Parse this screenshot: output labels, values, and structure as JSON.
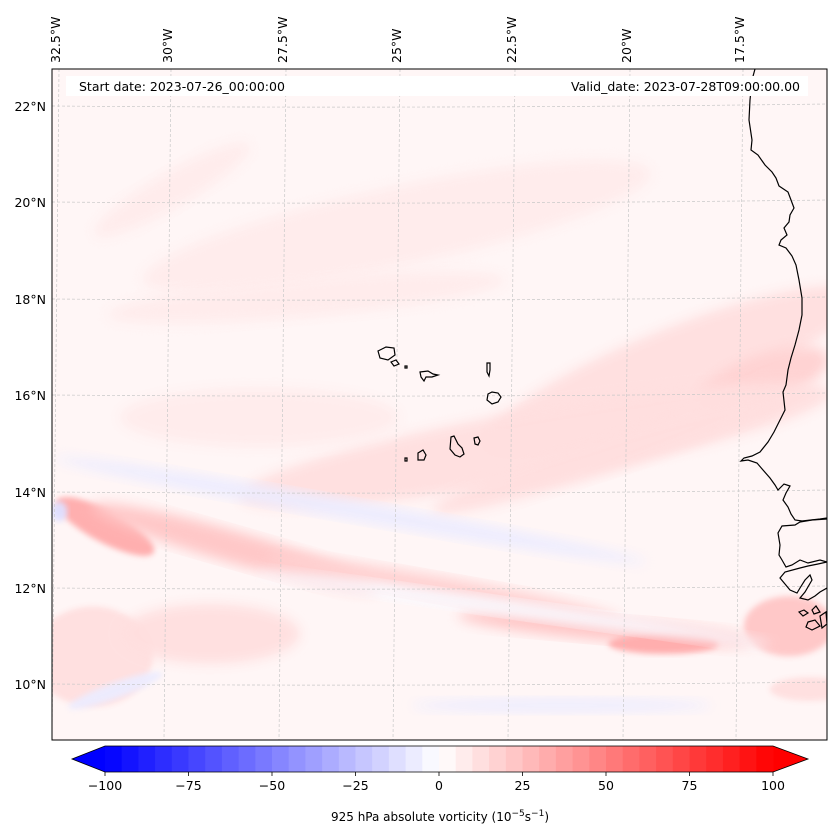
{
  "chart_data": {
    "type": "heatmap",
    "title": "",
    "projection": "map (filled contour)",
    "variable": "925 hPa absolute vorticity",
    "units_label": "925 hPa absolute vorticity (10",
    "units_exp1": "−5",
    "units_mid": "s",
    "units_exp2": "−1",
    "units_close": ")",
    "start_date_label": "Start date: 2023-07-26_00:00:00",
    "valid_date_label": "Valid_date: 2023-07-28T09:00:00.00",
    "lon_ticks": [
      "32.5°W",
      "30°W",
      "27.5°W",
      "25°W",
      "22.5°W",
      "20°W",
      "17.5°W"
    ],
    "lon_values": [
      -32.5,
      -30,
      -27.5,
      -25,
      -22.5,
      -20,
      -17.5
    ],
    "lat_ticks": [
      "22°N",
      "20°N",
      "18°N",
      "16°N",
      "14°N",
      "12°N",
      "10°N"
    ],
    "lat_values": [
      22,
      20,
      18,
      16,
      14,
      12,
      10
    ],
    "extent": {
      "lon_min": -32.7,
      "lon_max": -15.7,
      "lat_min": 9.0,
      "lat_max": 22.8
    },
    "grid": "dashed light gray",
    "colorbar": {
      "cmap": "bwr",
      "vmin": -100,
      "vmax": 100,
      "step": 5,
      "extend": "both",
      "ticks": [
        -100,
        -75,
        -50,
        -25,
        0,
        25,
        50,
        75,
        100
      ],
      "tick_labels": [
        "−100",
        "−75",
        "−50",
        "−25",
        "0",
        "25",
        "50",
        "75",
        "100"
      ],
      "orientation": "horizontal",
      "placement": "bottom"
    },
    "features": [
      {
        "name": "background",
        "value": 3
      },
      {
        "name": "ITCZ vorticity band west",
        "lon": -31.5,
        "lat": 13.3,
        "value": 35
      },
      {
        "name": "ITCZ band center",
        "lon": -24,
        "lat": 12.0,
        "value": 20
      },
      {
        "name": "ITCZ band east maximum",
        "lon": -19,
        "lat": 10.9,
        "value": 30
      },
      {
        "name": "coastal maximum Guinea",
        "lon": -16.4,
        "lat": 11.3,
        "value": 25
      },
      {
        "name": "Mauritania coast band",
        "lon": -17.5,
        "lat": 16.5,
        "value": 15
      },
      {
        "name": "Cape Verde band",
        "lon": -21,
        "lat": 15.0,
        "value": 12
      },
      {
        "name": "negative strip north of ITCZ",
        "lon": -26,
        "lat": 13.0,
        "value": -8
      },
      {
        "name": "negative strip south",
        "lon": -21,
        "lat": 9.6,
        "value": -6
      }
    ],
    "coastline": "West African coast (Mauritania, Senegal, Gambia, Guinea-Bissau, Guinea) and Cape Verde Islands"
  }
}
